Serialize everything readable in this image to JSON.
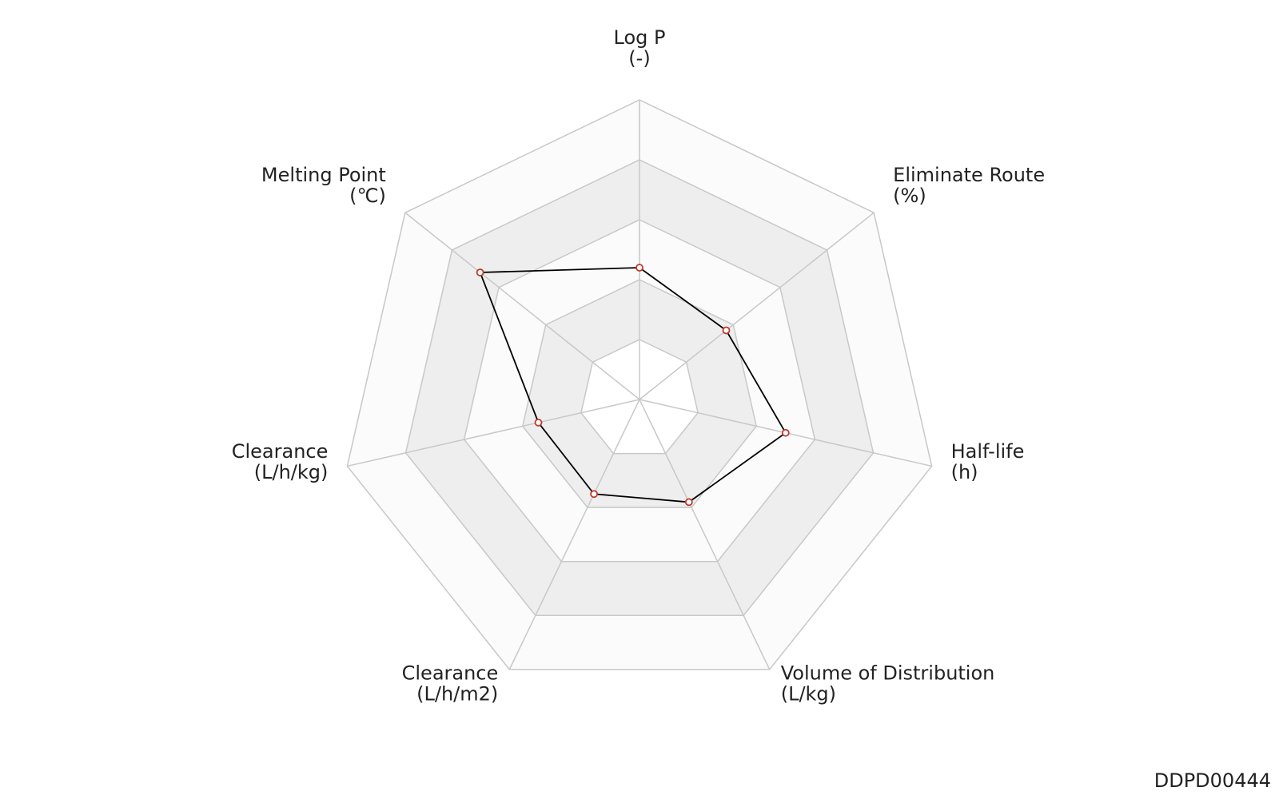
{
  "chart_data": {
    "type": "radar",
    "categories": [
      "Log P",
      "Eliminate Route",
      "Half-life",
      "Volume of Distribution",
      "Clearance",
      "Clearance",
      "Melting Point"
    ],
    "units": [
      "(-)",
      "(%)",
      "(h)",
      "(L/kg)",
      "(L/h/m2)",
      "(L/h/kg)",
      "(℃)"
    ],
    "values": [
      2.2,
      1.85,
      2.5,
      1.9,
      1.75,
      1.73,
      3.4
    ],
    "rlim": [
      0,
      5
    ],
    "rticks": [
      1,
      2,
      3,
      4,
      5
    ],
    "line_color": "#000000",
    "marker_color": "#c0392b",
    "footer": "DDPD00444"
  }
}
